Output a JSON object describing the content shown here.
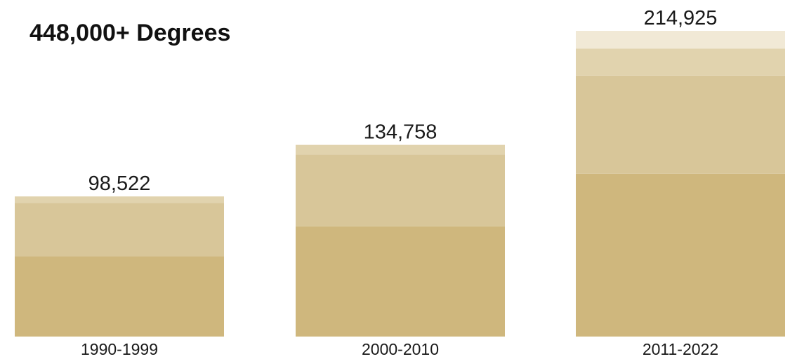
{
  "chart_data": {
    "type": "bar",
    "stacked": true,
    "title": "448,000+ Degrees",
    "xlabel": "",
    "ylabel": "",
    "ylim": [
      0,
      220000
    ],
    "grid": false,
    "categories": [
      "1990-1999",
      "2000-2010",
      "2011-2022"
    ],
    "totals": [
      98522,
      134758,
      214925
    ],
    "total_labels": [
      "98,522",
      "134,758",
      "214,925"
    ],
    "series": [
      {
        "values": [
          56500,
          77500,
          114500
        ],
        "color": "#cfb77d"
      },
      {
        "values": [
          37500,
          50500,
          69000
        ],
        "color": "#d8c699"
      },
      {
        "values": [
          4522,
          6758,
          19000
        ],
        "color": "#e1d3ae"
      },
      {
        "values": [
          0,
          0,
          12425
        ],
        "color": "#f1e9d6"
      }
    ]
  }
}
